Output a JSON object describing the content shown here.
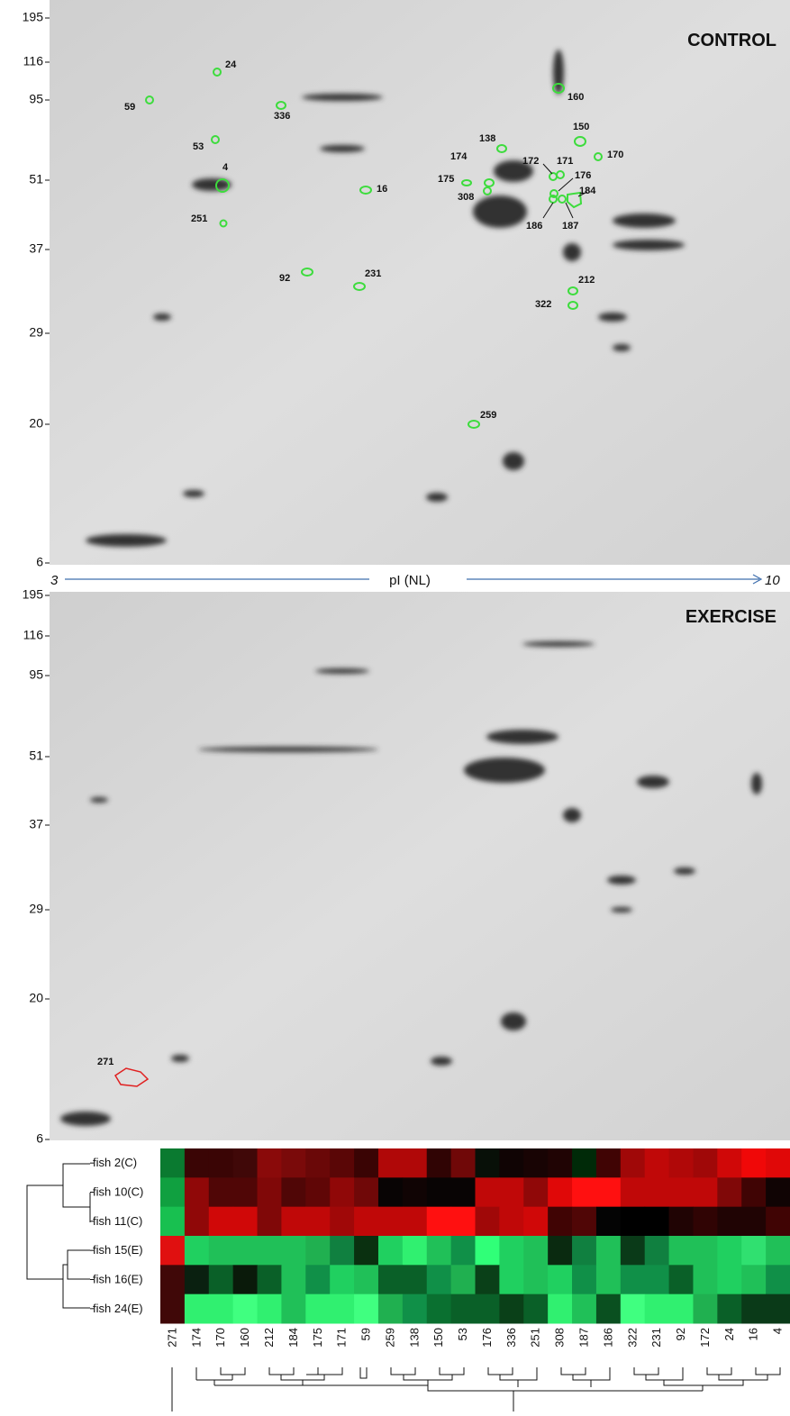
{
  "figure": {
    "control_panel": {
      "title": "CONTROL",
      "mw_ticks": [
        195,
        116,
        95,
        51,
        37,
        29,
        20,
        6
      ],
      "spots": [
        "24",
        "59",
        "336",
        "53",
        "4",
        "251",
        "16",
        "92",
        "231",
        "259",
        "138",
        "174",
        "175",
        "308",
        "160",
        "150",
        "170",
        "172",
        "171",
        "176",
        "184",
        "186",
        "187",
        "212",
        "322"
      ]
    },
    "pi_axis": {
      "start": "3",
      "label": "pI (NL)",
      "end": "10"
    },
    "exercise_panel": {
      "title": "EXERCISE",
      "mw_ticks": [
        195,
        116,
        95,
        51,
        37,
        29,
        20,
        6
      ],
      "spots": [
        "271"
      ]
    },
    "heatmap": {
      "columns": [
        "271",
        "174",
        "170",
        "160",
        "212",
        "184",
        "175",
        "171",
        "59",
        "259",
        "138",
        "150",
        "53",
        "176",
        "336",
        "251",
        "308",
        "187",
        "186",
        "322",
        "231",
        "92",
        "172",
        "24",
        "16",
        "4"
      ],
      "rows": [
        {
          "label": "fish 2(C)",
          "colors": [
            "#0a7a30",
            "#3a0505",
            "#3a0505",
            "#400808",
            "#8a0a0a",
            "#7a0a0a",
            "#6a0808",
            "#5a0606",
            "#3a0404",
            "#b00808",
            "#b00808",
            "#300404",
            "#700808",
            "#081008",
            "#100404",
            "#180404",
            "#200404",
            "#002a08",
            "#400404",
            "#a00808",
            "#c00808",
            "#b00808",
            "#a00808",
            "#d00808",
            "#f00808",
            "#e00808"
          ]
        },
        {
          "label": "fish 10(C)",
          "colors": [
            "#10a040",
            "#900808",
            "#500606",
            "#500606",
            "#800808",
            "#500606",
            "#600606",
            "#900808",
            "#700808",
            "#080404",
            "#100404",
            "#080404",
            "#080404",
            "#c00808",
            "#c00808",
            "#900808",
            "#e00808",
            "#ff1010",
            "#ff1010",
            "#c00808",
            "#c00808",
            "#c00808",
            "#c00808",
            "#800808",
            "#400404",
            "#100404"
          ]
        },
        {
          "label": "fish 11(C)",
          "colors": [
            "#18c050",
            "#900808",
            "#d00808",
            "#d00808",
            "#800808",
            "#c00808",
            "#c00808",
            "#a00808",
            "#c00808",
            "#c00808",
            "#c00808",
            "#ff1010",
            "#ff1010",
            "#a00808",
            "#c00808",
            "#d00808",
            "#400404",
            "#500606",
            "#040404",
            "#000000",
            "#000000",
            "#200404",
            "#300404",
            "#200404",
            "#200404",
            "#400404"
          ]
        },
        {
          "label": "fish 15(E)",
          "colors": [
            "#e01010",
            "#20d060",
            "#20c058",
            "#20c058",
            "#20c058",
            "#20c058",
            "#20b050",
            "#108040",
            "#0a3010",
            "#20d060",
            "#30f070",
            "#20c058",
            "#109048",
            "#30ff78",
            "#20d060",
            "#20c058",
            "#0a2a10",
            "#108040",
            "#20c058",
            "#0a3a18",
            "#108040",
            "#20c058",
            "#20c058",
            "#20d060",
            "#30e070",
            "#20c058"
          ]
        },
        {
          "label": "fish 16(E)",
          "colors": [
            "#400808",
            "#0a2010",
            "#0a6028",
            "#0a1a0a",
            "#0a6028",
            "#20c058",
            "#109048",
            "#20d060",
            "#20c058",
            "#0a6028",
            "#0a6028",
            "#109048",
            "#20b050",
            "#0a4018",
            "#20d060",
            "#20c058",
            "#20d060",
            "#109048",
            "#20c058",
            "#109048",
            "#109048",
            "#0a6028",
            "#20c058",
            "#20d060",
            "#20c058",
            "#109048"
          ]
        },
        {
          "label": "fish 24(E)",
          "colors": [
            "#400808",
            "#30f070",
            "#30f070",
            "#40ff80",
            "#30f070",
            "#20c058",
            "#30f070",
            "#30f070",
            "#40ff80",
            "#20b050",
            "#109048",
            "#0a7030",
            "#0a6028",
            "#0a6028",
            "#0a4018",
            "#0a6028",
            "#30f070",
            "#20c058",
            "#0a5020",
            "#40ff80",
            "#30f070",
            "#30f070",
            "#20b050",
            "#0a6028",
            "#0a3a18",
            "#0a3a18"
          ]
        }
      ]
    }
  }
}
